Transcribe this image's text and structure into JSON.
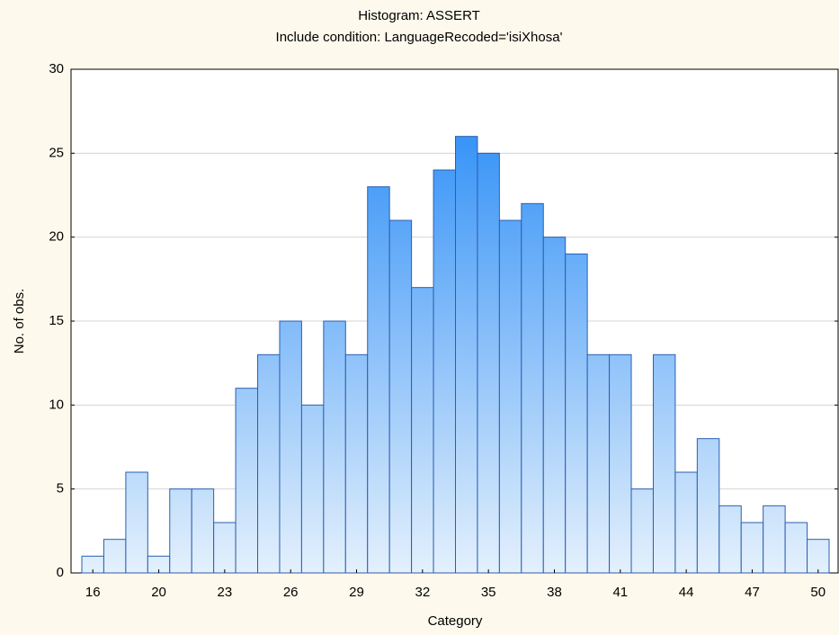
{
  "chart_data": {
    "type": "bar",
    "title": "Histogram: ASSERT",
    "subtitle": "Include condition: LanguageRecoded='isiXhosa'",
    "x_label": "Category",
    "y_label": "No. of obs.",
    "categories": [
      "16",
      null,
      null,
      "20",
      null,
      null,
      "23",
      null,
      null,
      "26",
      null,
      null,
      "29",
      null,
      null,
      "32",
      null,
      null,
      "35",
      null,
      null,
      "38",
      null,
      null,
      "41",
      null,
      null,
      "44",
      null,
      null,
      "47",
      null,
      null,
      "50"
    ],
    "values": [
      1,
      2,
      6,
      1,
      5,
      5,
      3,
      11,
      13,
      15,
      10,
      15,
      13,
      23,
      21,
      17,
      24,
      26,
      25,
      21,
      22,
      20,
      19,
      13,
      13,
      5,
      13,
      6,
      8,
      4,
      3,
      4,
      3,
      2
    ],
    "gradient": [
      "#1e86f6",
      "#e4f0fc"
    ],
    "edge_color": "#2b5fb0",
    "ylim": [
      0,
      30
    ],
    "yticks": [
      0,
      5,
      10,
      15,
      20,
      25,
      30
    ],
    "grid": true
  }
}
